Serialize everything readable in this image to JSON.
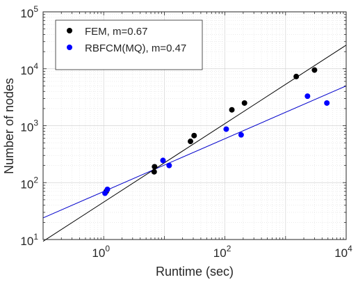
{
  "chart_data": {
    "type": "scatter",
    "title": "",
    "xlabel": "Runtime (sec)",
    "ylabel": "Number of nodes",
    "xscale": "log",
    "yscale": "log",
    "xlim": [
      0.1,
      10000
    ],
    "ylim": [
      10,
      100000
    ],
    "x_ticks": [
      {
        "value": 1,
        "base": "10",
        "exp": "0"
      },
      {
        "value": 100,
        "base": "10",
        "exp": "2"
      },
      {
        "value": 10000,
        "base": "10",
        "exp": "4"
      }
    ],
    "y_ticks": [
      {
        "value": 10,
        "base": "10",
        "exp": "1"
      },
      {
        "value": 100,
        "base": "10",
        "exp": "2"
      },
      {
        "value": 1000,
        "base": "10",
        "exp": "3"
      },
      {
        "value": 10000,
        "base": "10",
        "exp": "4"
      },
      {
        "value": 100000,
        "base": "10",
        "exp": "5"
      }
    ],
    "grid": "major-and-minor",
    "legend_position": "top-left",
    "series": [
      {
        "name": "FEM, m=0.67",
        "color": "#000000",
        "fit_color": "#000000",
        "points": [
          {
            "x": 1.1,
            "y": 70
          },
          {
            "x": 6.9,
            "y": 190
          },
          {
            "x": 6.8,
            "y": 155
          },
          {
            "x": 27,
            "y": 530
          },
          {
            "x": 31,
            "y": 670
          },
          {
            "x": 130,
            "y": 1900
          },
          {
            "x": 210,
            "y": 2500
          },
          {
            "x": 1500,
            "y": 7300
          },
          {
            "x": 3000,
            "y": 9500
          }
        ],
        "fit": [
          [
            0.1,
            9.3
          ],
          [
            10000,
            26000
          ]
        ]
      },
      {
        "name": "RBFCM(MQ), m=0.47",
        "color": "#0000ff",
        "fit_color": "#0000cc",
        "points": [
          {
            "x": 1.05,
            "y": 65
          },
          {
            "x": 1.15,
            "y": 76
          },
          {
            "x": 9.5,
            "y": 245
          },
          {
            "x": 12,
            "y": 200
          },
          {
            "x": 105,
            "y": 870
          },
          {
            "x": 185,
            "y": 690
          },
          {
            "x": 2300,
            "y": 3300
          },
          {
            "x": 4800,
            "y": 2500
          }
        ],
        "fit": [
          [
            0.1,
            24
          ],
          [
            10000,
            5000
          ]
        ]
      }
    ]
  }
}
